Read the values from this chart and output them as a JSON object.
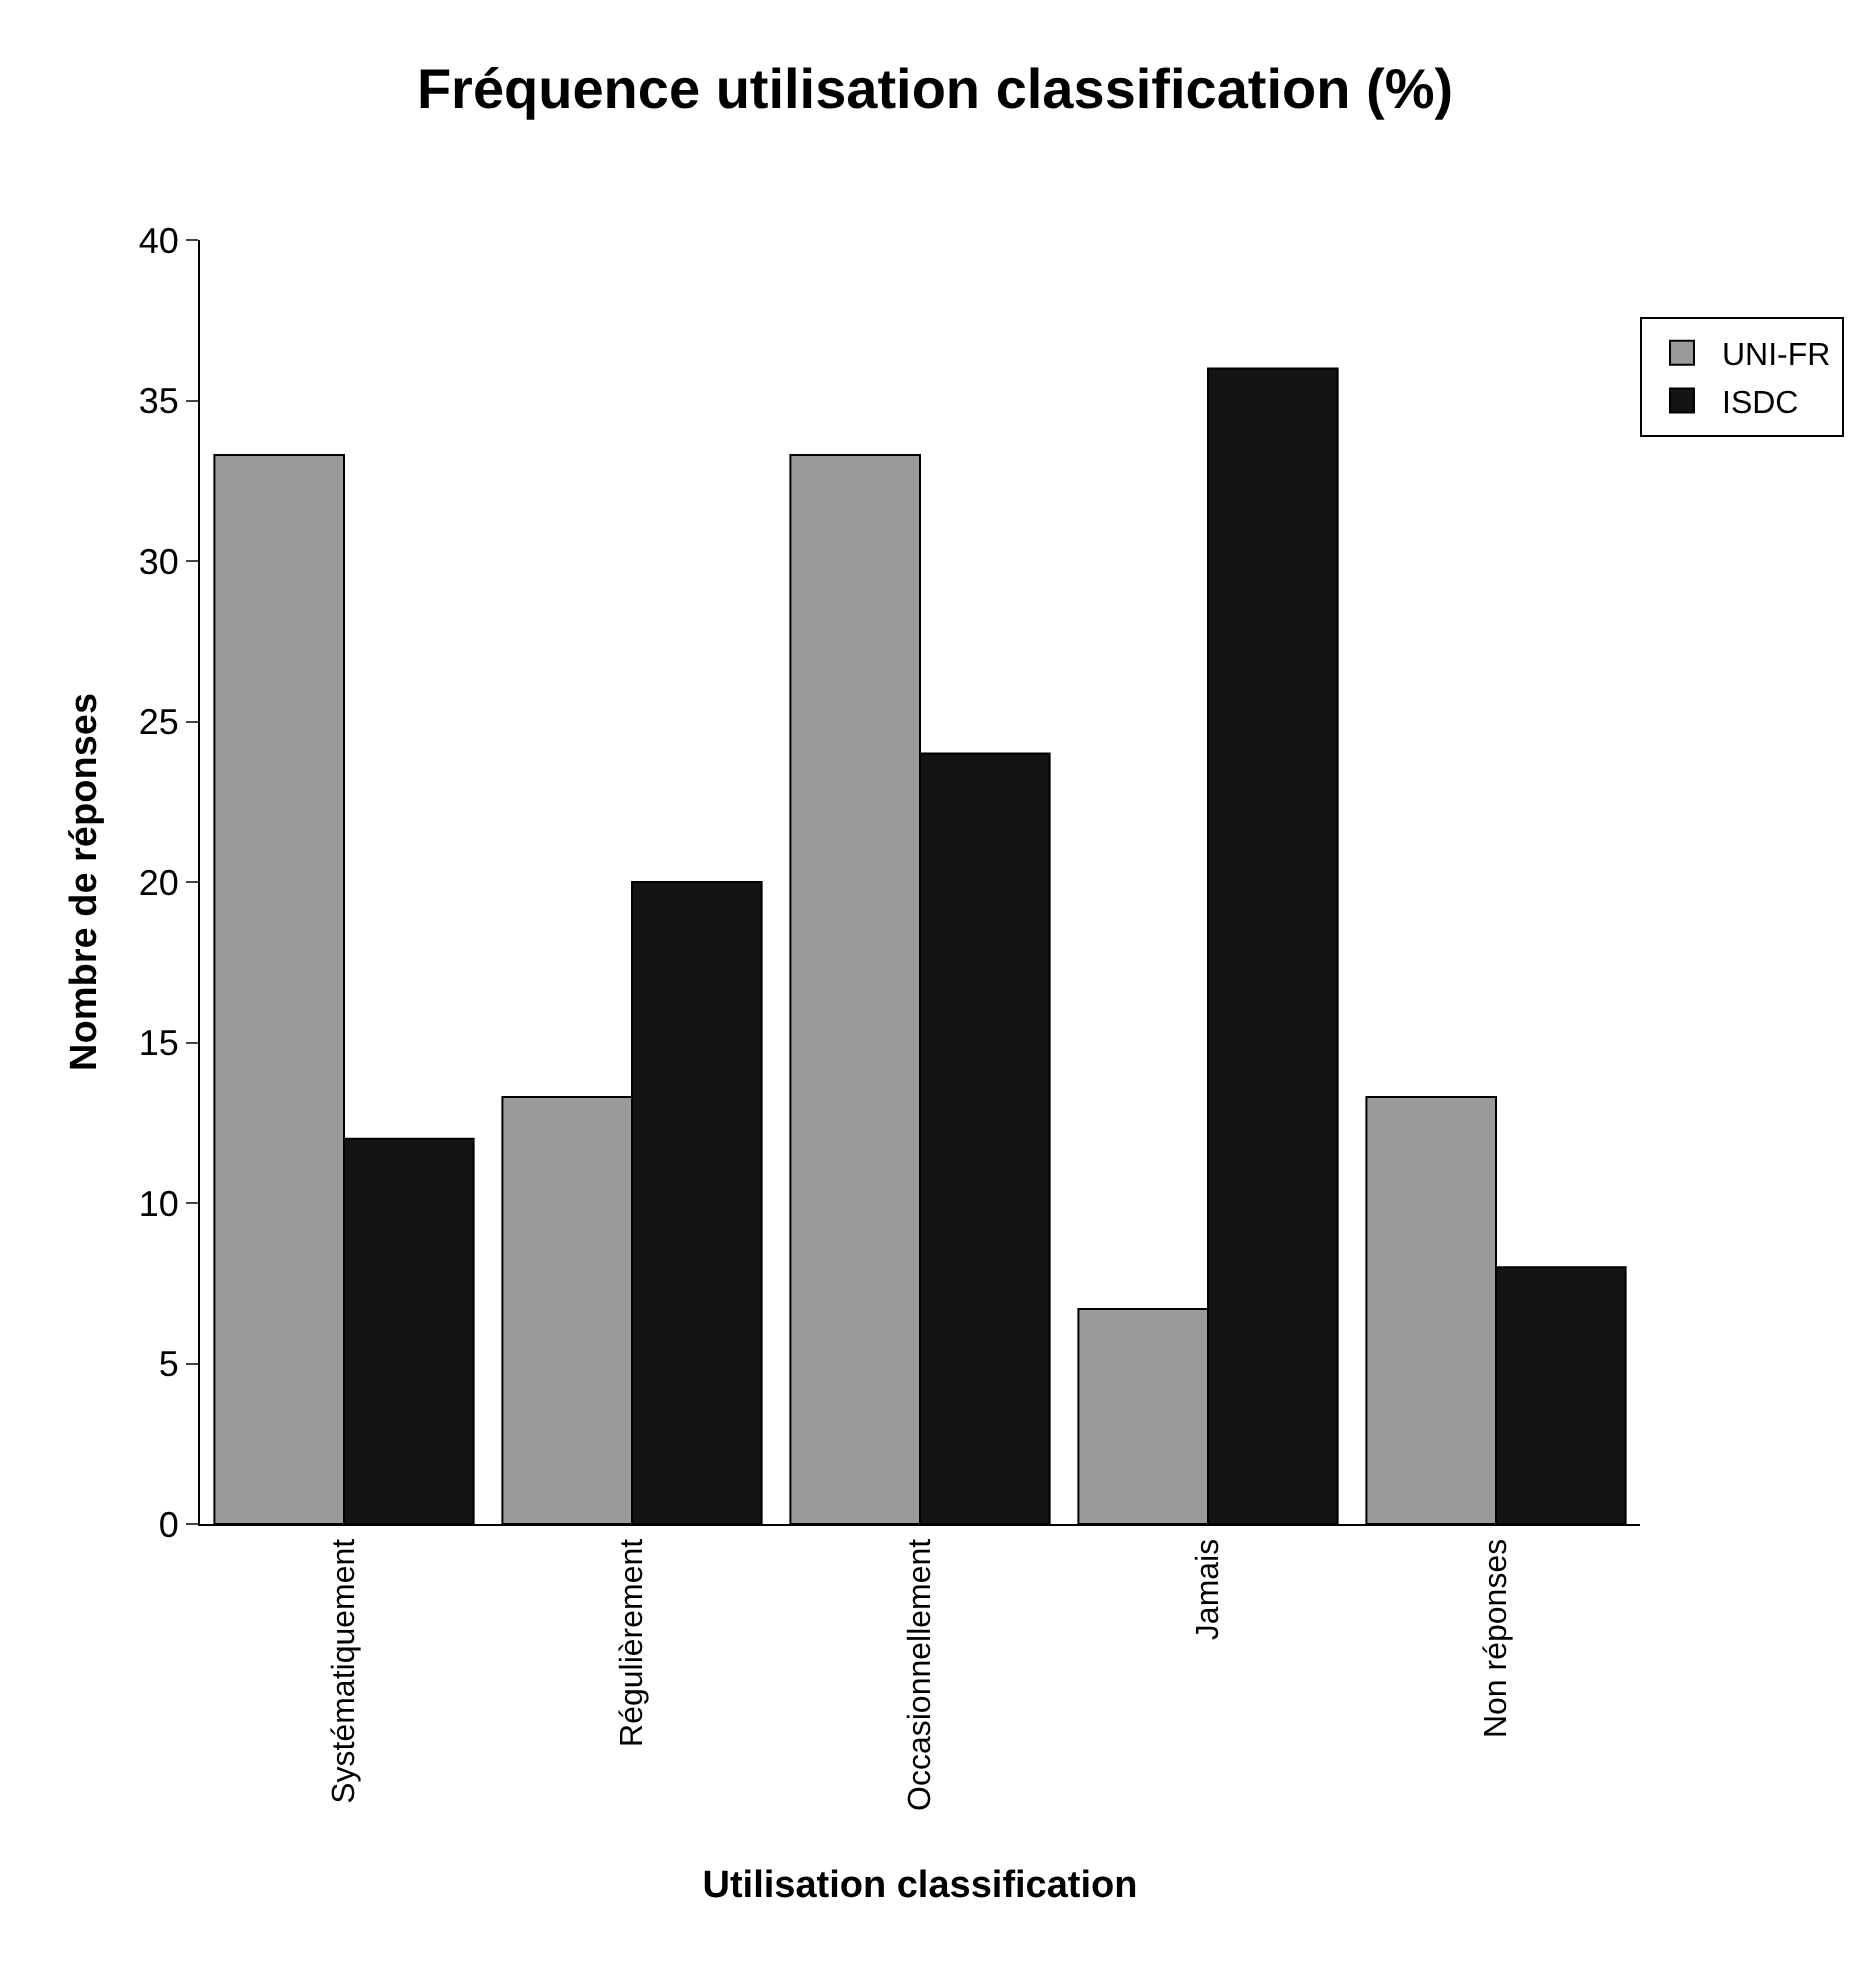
{
  "chart_data": {
    "type": "bar",
    "title": "Fréquence utilisation classification (%)",
    "xlabel": "Utilisation classification",
    "ylabel": "Nombre de réponses",
    "categories": [
      "Systématiquement",
      "Régulièrement",
      "Occasionnellement",
      "Jamais",
      "Non réponses"
    ],
    "series": [
      {
        "name": "UNI-FR",
        "color": "#9a9a9a",
        "values": [
          33.3,
          13.3,
          33.3,
          6.7,
          13.3
        ]
      },
      {
        "name": "ISDC",
        "color": "#141414",
        "values": [
          12,
          20,
          24,
          36,
          8
        ]
      }
    ],
    "ylim": [
      0,
      40
    ],
    "yticks": [
      0,
      5,
      10,
      15,
      20,
      25,
      30,
      35,
      40
    ],
    "grid": false,
    "legend": "top right"
  }
}
